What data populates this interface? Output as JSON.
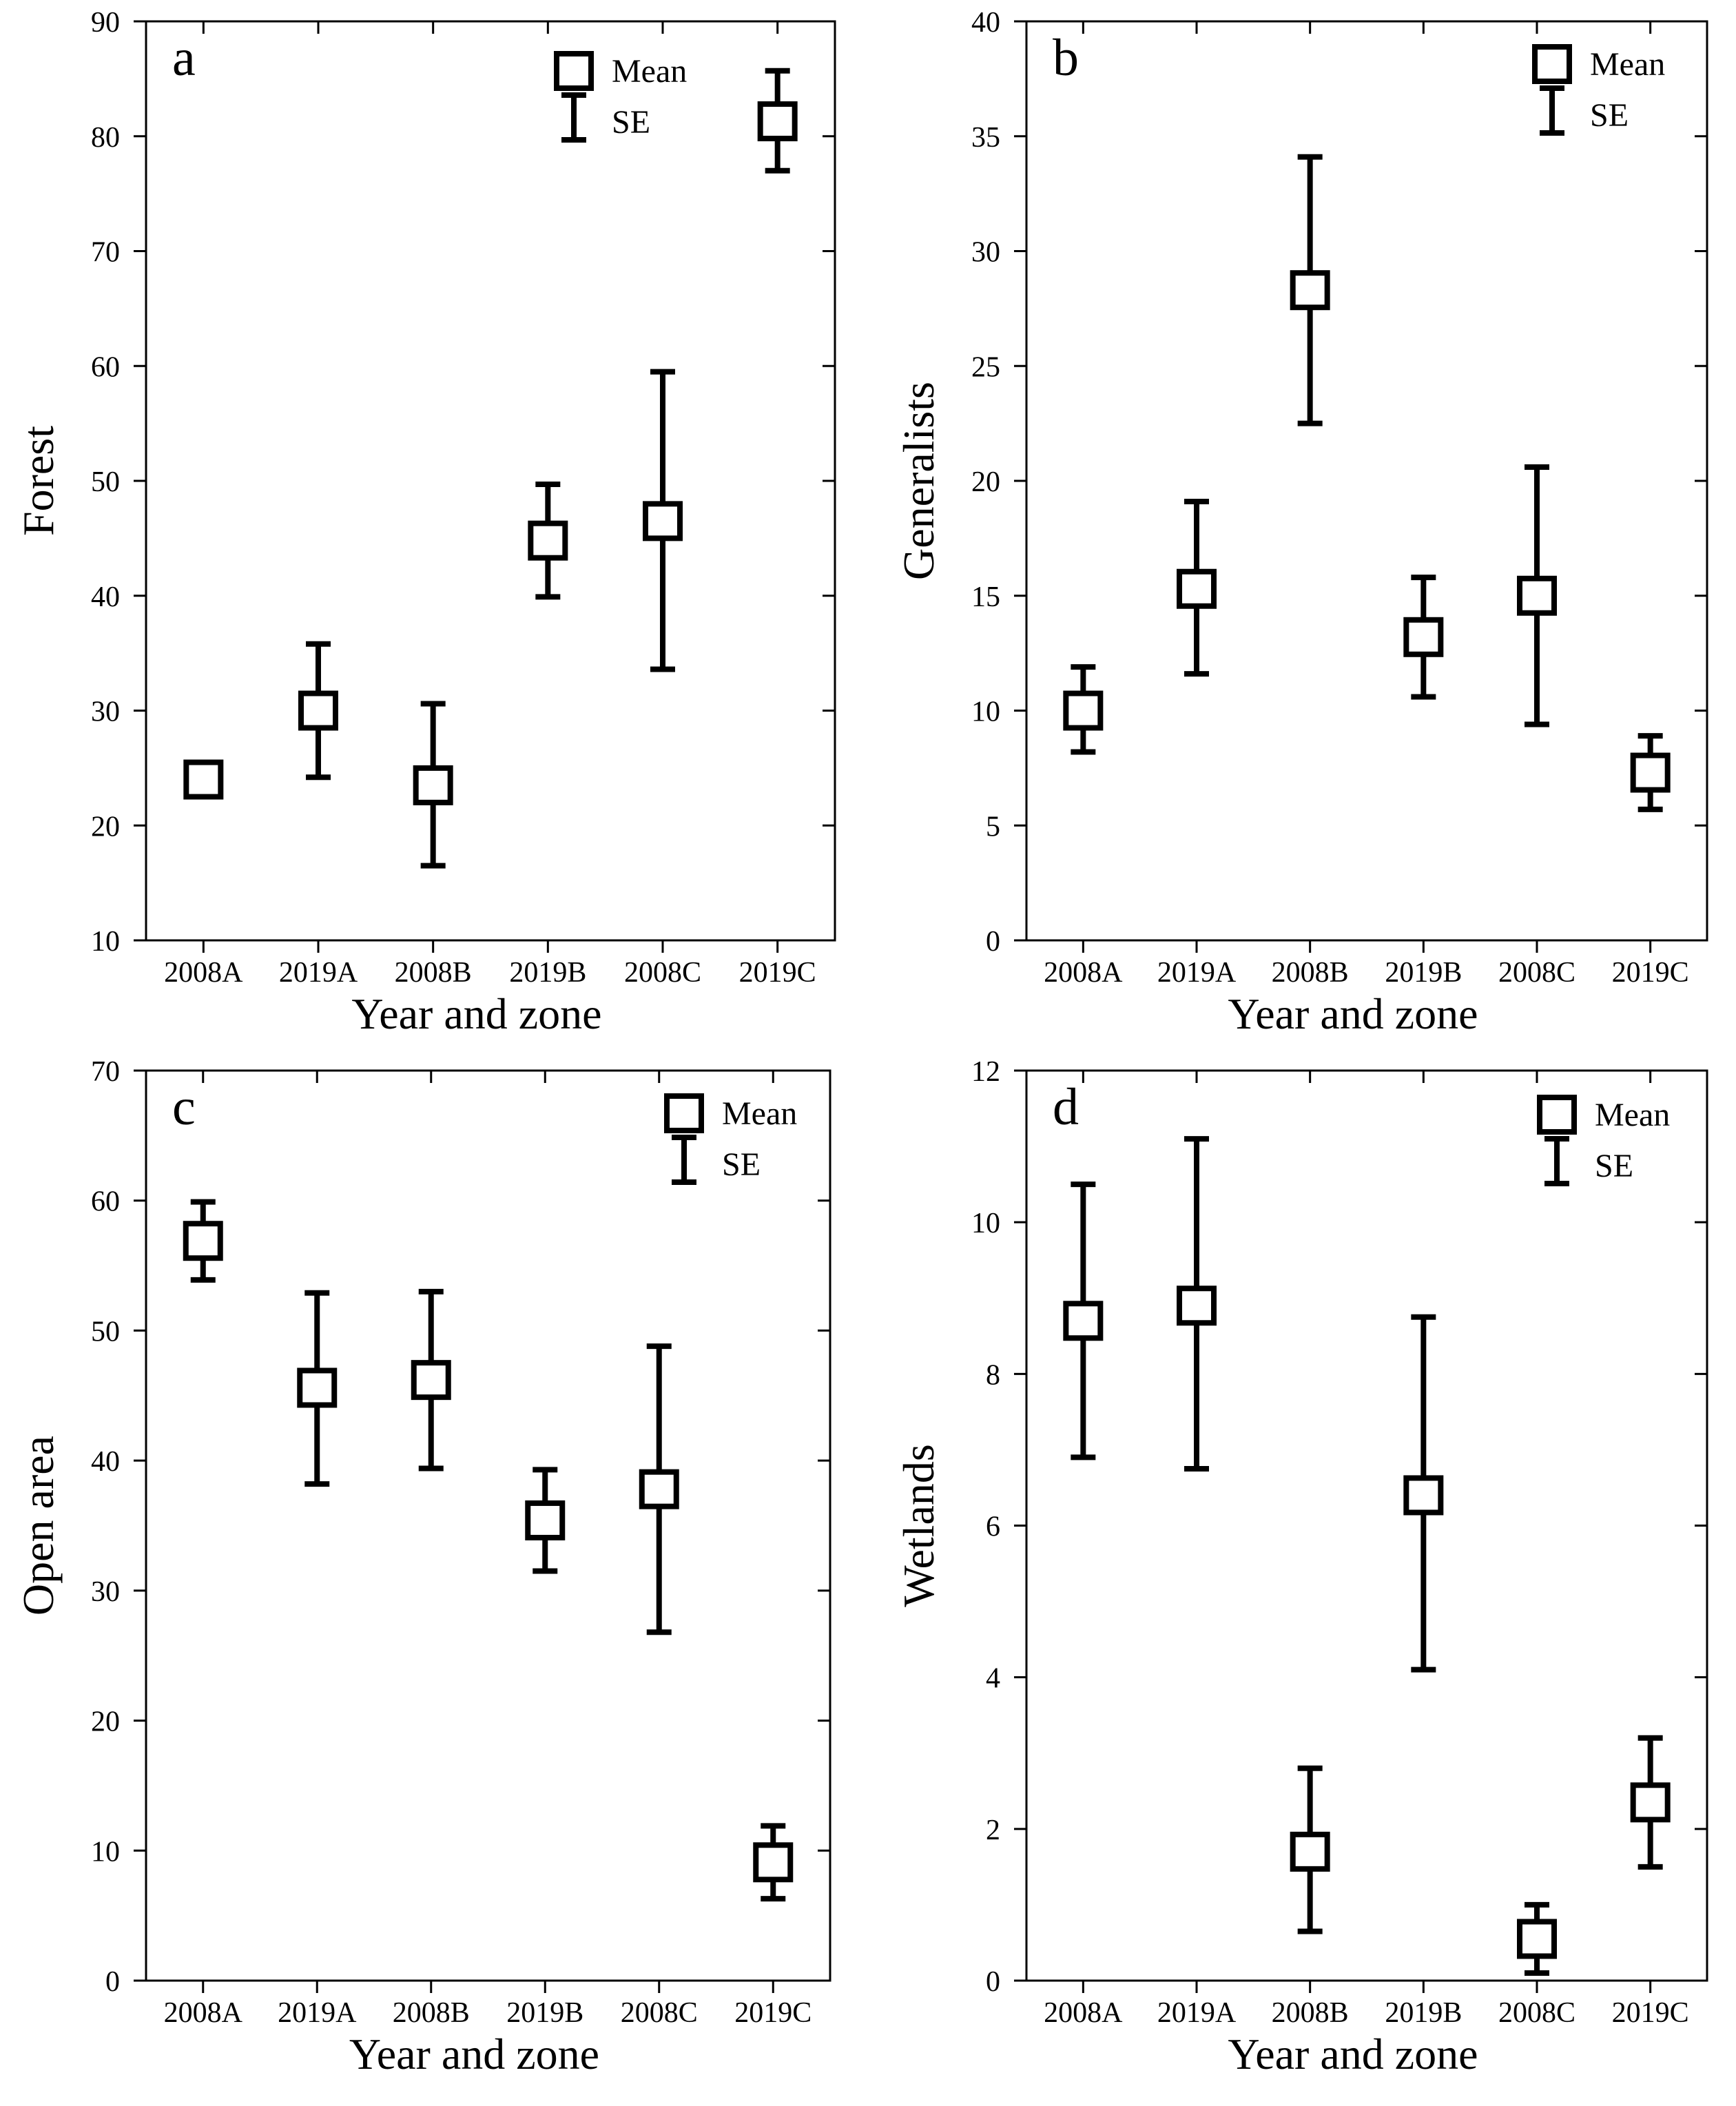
{
  "chart_data": [
    {
      "type": "scatter",
      "panel_label": "a",
      "title": "",
      "xlabel": "Year and zone",
      "ylabel": "Forest",
      "categories": [
        "2008A",
        "2019A",
        "2008B",
        "2019B",
        "2008C",
        "2019C"
      ],
      "ylim": [
        10,
        90
      ],
      "yticks": [
        10,
        20,
        30,
        40,
        50,
        60,
        70,
        80,
        90
      ],
      "legend": {
        "mean_label": "Mean",
        "se_label": "SE",
        "position": "top-right"
      },
      "series": [
        {
          "name": "Mean",
          "values": [
            24,
            30,
            23.5,
            44.8,
            46.5,
            81.3
          ]
        },
        {
          "name": "SE upper",
          "values": [
            25,
            35.8,
            30.6,
            49.7,
            59.5,
            85.7
          ]
        },
        {
          "name": "SE lower",
          "values": [
            23,
            24.2,
            16.5,
            39.9,
            33.6,
            77
          ]
        }
      ]
    },
    {
      "type": "scatter",
      "panel_label": "b",
      "title": "",
      "xlabel": "Year and zone",
      "ylabel": "Generalists",
      "categories": [
        "2008A",
        "2019A",
        "2008B",
        "2019B",
        "2008C",
        "2019C"
      ],
      "ylim": [
        0,
        40
      ],
      "yticks": [
        0,
        5,
        10,
        15,
        20,
        25,
        30,
        35,
        40
      ],
      "legend": {
        "mean_label": "Mean",
        "se_label": "SE",
        "position": "top-right"
      },
      "series": [
        {
          "name": "Mean",
          "values": [
            10,
            15.3,
            28.3,
            13.2,
            15,
            7.3
          ]
        },
        {
          "name": "SE upper",
          "values": [
            11.9,
            19.1,
            34.1,
            15.8,
            20.6,
            8.9
          ]
        },
        {
          "name": "SE lower",
          "values": [
            8.2,
            11.6,
            22.5,
            10.6,
            9.4,
            5.7
          ]
        }
      ]
    },
    {
      "type": "scatter",
      "panel_label": "c",
      "title": "",
      "xlabel": "Year and zone",
      "ylabel": "Open area",
      "categories": [
        "2008A",
        "2019A",
        "2008B",
        "2019B",
        "2008C",
        "2019C"
      ],
      "ylim": [
        0,
        70
      ],
      "yticks": [
        0,
        10,
        20,
        30,
        40,
        50,
        60,
        70
      ],
      "legend": {
        "mean_label": "Mean",
        "se_label": "SE",
        "position": "top-right"
      },
      "series": [
        {
          "name": "Mean",
          "values": [
            56.9,
            45.6,
            46.2,
            35.4,
            37.8,
            9.1
          ]
        },
        {
          "name": "SE upper",
          "values": [
            59.9,
            52.9,
            53,
            39.3,
            48.8,
            11.9
          ]
        },
        {
          "name": "SE lower",
          "values": [
            53.9,
            38.2,
            39.4,
            31.5,
            26.8,
            6.3
          ]
        }
      ]
    },
    {
      "type": "scatter",
      "panel_label": "d",
      "title": "",
      "xlabel": "Year and zone",
      "ylabel": "Wetlands",
      "categories": [
        "2008A",
        "2019A",
        "2008B",
        "2019B",
        "2008C",
        "2019C"
      ],
      "ylim": [
        0,
        12
      ],
      "yticks": [
        0,
        2,
        4,
        6,
        8,
        10,
        12
      ],
      "legend": {
        "mean_label": "Mean",
        "se_label": "SE",
        "position": "top-right"
      },
      "series": [
        {
          "name": "Mean",
          "values": [
            8.7,
            8.9,
            1.7,
            6.4,
            0.55,
            2.35
          ]
        },
        {
          "name": "SE upper",
          "values": [
            10.5,
            11.1,
            2.8,
            8.75,
            1,
            3.2
          ]
        },
        {
          "name": "SE lower",
          "values": [
            6.9,
            6.75,
            0.65,
            4.1,
            0.1,
            1.5
          ]
        }
      ]
    }
  ]
}
